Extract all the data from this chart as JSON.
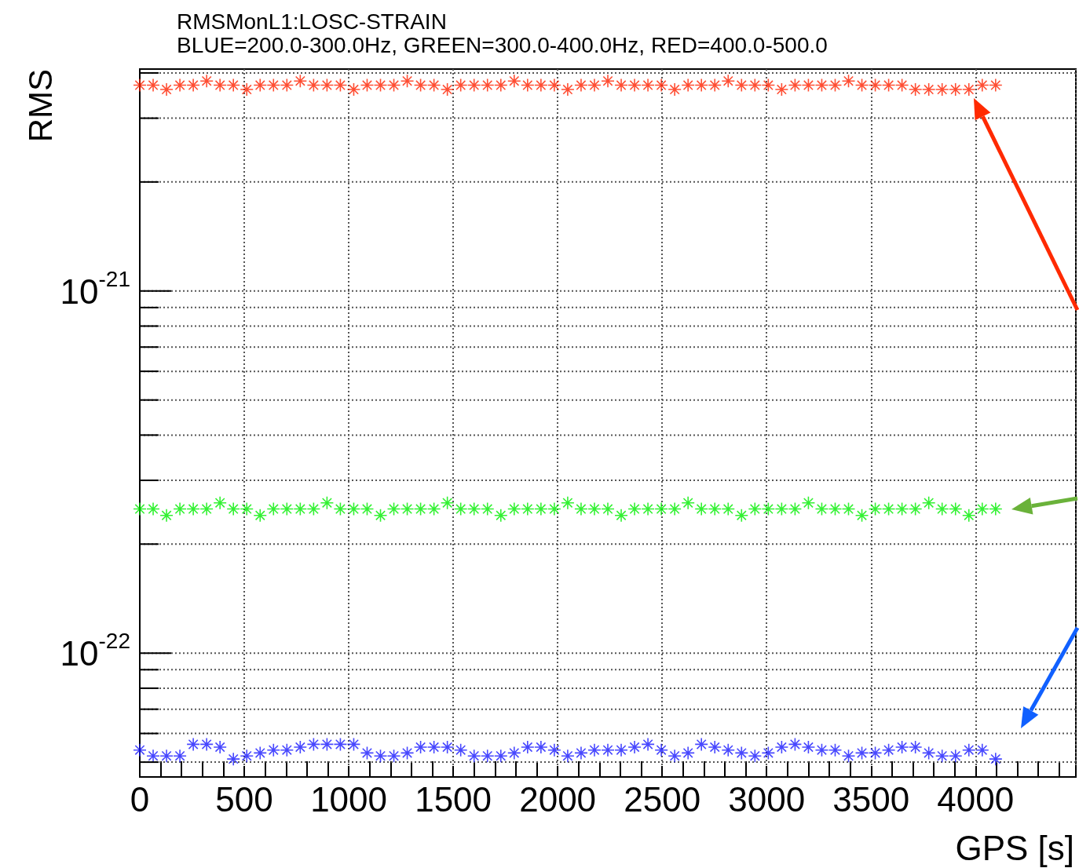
{
  "chart_data": {
    "type": "scatter",
    "title": "RMSMonL1:LOSC-STRAIN",
    "subtitle": "BLUE=200.0-300.0Hz, GREEN=300.0-400.0Hz, RED=400.0-500.0",
    "xlabel": "GPS [s]",
    "ylabel": "RMS",
    "x": [
      0,
      64,
      128,
      192,
      256,
      320,
      384,
      448,
      512,
      576,
      640,
      704,
      768,
      832,
      896,
      960,
      1024,
      1088,
      1152,
      1216,
      1280,
      1344,
      1408,
      1472,
      1536,
      1600,
      1664,
      1728,
      1792,
      1856,
      1920,
      1984,
      2048,
      2112,
      2176,
      2240,
      2304,
      2368,
      2432,
      2496,
      2560,
      2624,
      2688,
      2752,
      2816,
      2880,
      2944,
      3008,
      3072,
      3136,
      3200,
      3264,
      3328,
      3392,
      3456,
      3520,
      3584,
      3648,
      3712,
      3776,
      3840,
      3904,
      3968,
      4032,
      4096
    ],
    "series": [
      {
        "color": "#ff2200",
        "values": [
          3.7e-21,
          3.7e-21,
          3.6e-21,
          3.7e-21,
          3.7e-21,
          3.8e-21,
          3.7e-21,
          3.7e-21,
          3.6e-21,
          3.7e-21,
          3.7e-21,
          3.7e-21,
          3.8e-21,
          3.7e-21,
          3.7e-21,
          3.7e-21,
          3.6e-21,
          3.7e-21,
          3.7e-21,
          3.7e-21,
          3.8e-21,
          3.7e-21,
          3.7e-21,
          3.6e-21,
          3.7e-21,
          3.7e-21,
          3.7e-21,
          3.7e-21,
          3.8e-21,
          3.7e-21,
          3.7e-21,
          3.7e-21,
          3.6e-21,
          3.7e-21,
          3.7e-21,
          3.8e-21,
          3.7e-21,
          3.7e-21,
          3.7e-21,
          3.7e-21,
          3.6e-21,
          3.7e-21,
          3.7e-21,
          3.7e-21,
          3.8e-21,
          3.7e-21,
          3.7e-21,
          3.7e-21,
          3.6e-21,
          3.7e-21,
          3.7e-21,
          3.7e-21,
          3.7e-21,
          3.8e-21,
          3.7e-21,
          3.7e-21,
          3.7e-21,
          3.7e-21,
          3.6e-21,
          3.6e-21,
          3.6e-21,
          3.6e-21,
          3.6e-21,
          3.7e-21,
          3.7e-21
        ]
      },
      {
        "color": "#00ee00",
        "values": [
          2.5e-22,
          2.5e-22,
          2.4e-22,
          2.5e-22,
          2.5e-22,
          2.5e-22,
          2.6e-22,
          2.5e-22,
          2.5e-22,
          2.4e-22,
          2.5e-22,
          2.5e-22,
          2.5e-22,
          2.5e-22,
          2.6e-22,
          2.5e-22,
          2.5e-22,
          2.5e-22,
          2.4e-22,
          2.5e-22,
          2.5e-22,
          2.5e-22,
          2.5e-22,
          2.6e-22,
          2.5e-22,
          2.5e-22,
          2.5e-22,
          2.4e-22,
          2.5e-22,
          2.5e-22,
          2.5e-22,
          2.5e-22,
          2.6e-22,
          2.5e-22,
          2.5e-22,
          2.5e-22,
          2.4e-22,
          2.5e-22,
          2.5e-22,
          2.5e-22,
          2.5e-22,
          2.6e-22,
          2.5e-22,
          2.5e-22,
          2.5e-22,
          2.4e-22,
          2.5e-22,
          2.5e-22,
          2.5e-22,
          2.5e-22,
          2.6e-22,
          2.5e-22,
          2.5e-22,
          2.5e-22,
          2.4e-22,
          2.5e-22,
          2.5e-22,
          2.5e-22,
          2.5e-22,
          2.6e-22,
          2.5e-22,
          2.5e-22,
          2.4e-22,
          2.5e-22,
          2.5e-22
        ]
      },
      {
        "color": "#1a1aff",
        "values": [
          5.4e-23,
          5.2e-23,
          5.2e-23,
          5.2e-23,
          5.6e-23,
          5.6e-23,
          5.5e-23,
          5.1e-23,
          5.2e-23,
          5.3e-23,
          5.4e-23,
          5.4e-23,
          5.5e-23,
          5.6e-23,
          5.6e-23,
          5.6e-23,
          5.6e-23,
          5.3e-23,
          5.2e-23,
          5.2e-23,
          5.3e-23,
          5.5e-23,
          5.5e-23,
          5.5e-23,
          5.4e-23,
          5.2e-23,
          5.2e-23,
          5.2e-23,
          5.3e-23,
          5.5e-23,
          5.5e-23,
          5.4e-23,
          5.2e-23,
          5.3e-23,
          5.4e-23,
          5.4e-23,
          5.4e-23,
          5.5e-23,
          5.6e-23,
          5.4e-23,
          5.2e-23,
          5.3e-23,
          5.6e-23,
          5.5e-23,
          5.4e-23,
          5.3e-23,
          5.2e-23,
          5.3e-23,
          5.5e-23,
          5.6e-23,
          5.5e-23,
          5.4e-23,
          5.4e-23,
          5.2e-23,
          5.3e-23,
          5.3e-23,
          5.4e-23,
          5.5e-23,
          5.5e-23,
          5.3e-23,
          5.2e-23,
          5.2e-23,
          5.4e-23,
          5.4e-23,
          5.1e-23
        ]
      }
    ],
    "xlim": [
      0,
      4480
    ],
    "xticks": [
      0,
      500,
      1000,
      1500,
      2000,
      2500,
      3000,
      3500,
      4000
    ],
    "ylim": [
      4.55e-23,
      4.1e-21
    ],
    "yticks": [
      {
        "value": 5e-23,
        "label": null
      },
      {
        "value": 6e-23,
        "label": null
      },
      {
        "value": 7e-23,
        "label": null
      },
      {
        "value": 8e-23,
        "label": null
      },
      {
        "value": 9e-23,
        "label": null
      },
      {
        "value": 1e-22,
        "label": "10$^{-22}$"
      },
      {
        "value": 2e-22,
        "label": null
      },
      {
        "value": 3e-22,
        "label": null
      },
      {
        "value": 4e-22,
        "label": null
      },
      {
        "value": 5e-22,
        "label": null
      },
      {
        "value": 6e-22,
        "label": null
      },
      {
        "value": 7e-22,
        "label": null
      },
      {
        "value": 8e-22,
        "label": null
      },
      {
        "value": 9e-22,
        "label": null
      },
      {
        "value": 1e-21,
        "label": "10$^{-21}$"
      },
      {
        "value": 2e-21,
        "label": null
      },
      {
        "value": 3e-21,
        "label": null
      },
      {
        "value": 4e-21,
        "label": null
      }
    ],
    "log": "y",
    "grid": true,
    "marker": "star"
  }
}
